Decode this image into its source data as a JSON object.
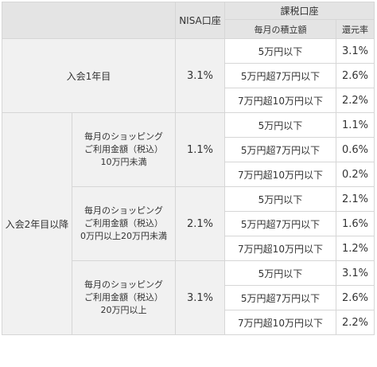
{
  "header": {
    "nisa": "NISA口座",
    "taxable": "課税口座",
    "monthly": "毎月の積立額",
    "rate": "還元率"
  },
  "year1": {
    "label": "入会1年目",
    "nisa_rate": "3.1%",
    "rows": [
      {
        "range": "5万円以下",
        "rate": "3.1%"
      },
      {
        "range": "5万円超7万円以下",
        "rate": "2.6%"
      },
      {
        "range": "7万円超10万円以下",
        "rate": "2.2%"
      }
    ]
  },
  "year2": {
    "label": "入会2年目以降",
    "groups": [
      {
        "cond_line1": "毎月のショッピング",
        "cond_line2": "ご利用金額（税込）",
        "cond_line3": "10万円未満",
        "nisa_rate": "1.1%",
        "rows": [
          {
            "range": "5万円以下",
            "rate": "1.1%"
          },
          {
            "range": "5万円超7万円以下",
            "rate": "0.6%"
          },
          {
            "range": "7万円超10万円以下",
            "rate": "0.2%"
          }
        ]
      },
      {
        "cond_line1": "毎月のショッピング",
        "cond_line2": "ご利用金額（税込）",
        "cond_line3": "0万円以上20万円未満",
        "nisa_rate": "2.1%",
        "rows": [
          {
            "range": "5万円以下",
            "rate": "2.1%"
          },
          {
            "range": "5万円超7万円以下",
            "rate": "1.6%"
          },
          {
            "range": "7万円超10万円以下",
            "rate": "1.2%"
          }
        ]
      },
      {
        "cond_line1": "毎月のショッピング",
        "cond_line2": "ご利用金額（税込）",
        "cond_line3": "20万円以上",
        "nisa_rate": "3.1%",
        "rows": [
          {
            "range": "5万円以下",
            "rate": "3.1%"
          },
          {
            "range": "5万円超7万円以下",
            "rate": "2.6%"
          },
          {
            "range": "7万円超10万円以下",
            "rate": "2.2%"
          }
        ]
      }
    ]
  }
}
